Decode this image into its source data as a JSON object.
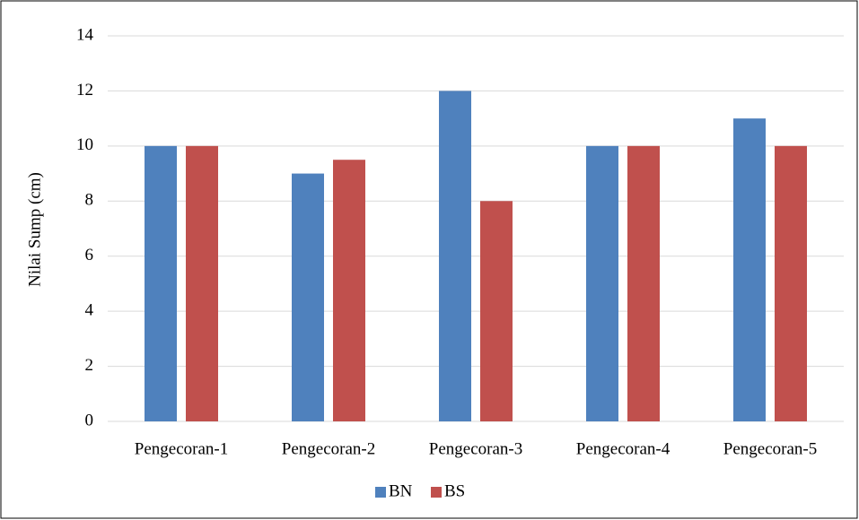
{
  "chart_data": {
    "type": "bar",
    "y_label": "Nilai Sump (cm)",
    "categories": [
      "Pengecoran-1",
      "Pengecoran-2",
      "Pengecoran-3",
      "Pengecoran-4",
      "Pengecoran-5"
    ],
    "series": [
      {
        "name": "BN",
        "color": "#4f81bd",
        "values": [
          10,
          9,
          12,
          10,
          11
        ]
      },
      {
        "name": "BS",
        "color": "#c0504d",
        "values": [
          10,
          9.5,
          8,
          10,
          10
        ]
      }
    ],
    "ylim": [
      0,
      14
    ],
    "yticks": [
      0,
      2,
      4,
      6,
      8,
      10,
      12,
      14
    ],
    "grid": true,
    "legend": "bottom"
  }
}
